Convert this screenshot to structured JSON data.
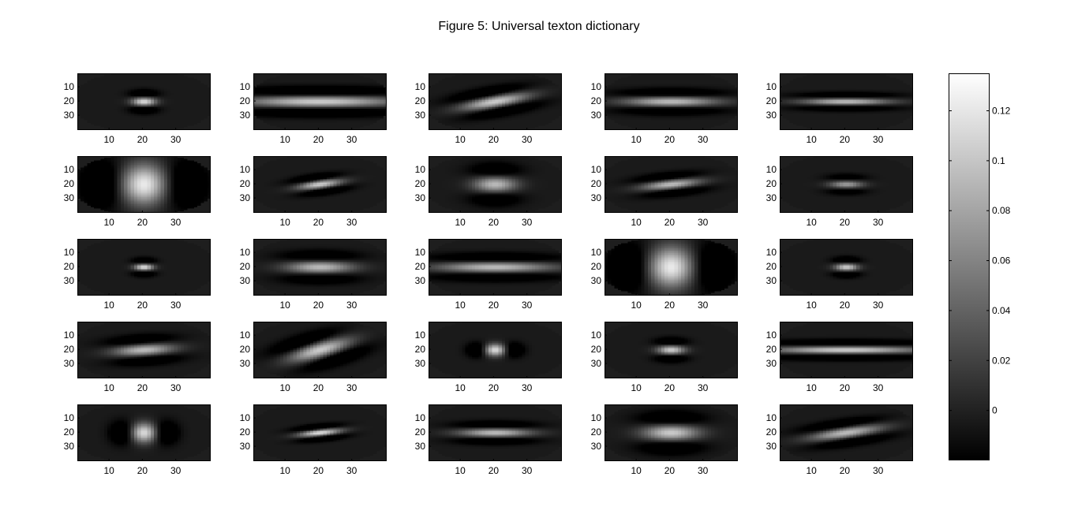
{
  "chart_data": {
    "type": "heatmap",
    "title": "Figure 5: Universal texton dictionary",
    "rows": 5,
    "cols": 5,
    "panel_x_ticks": [
      "10",
      "20",
      "30"
    ],
    "panel_y_ticks": [
      "10",
      "20",
      "30"
    ],
    "panel_xlim": [
      0.5,
      40.5
    ],
    "panel_ylim": [
      0.5,
      40.5
    ],
    "colormap": "gray",
    "colorbar": {
      "range": [
        -0.02,
        0.135
      ],
      "ticks": [
        "0",
        "0.02",
        "0.04",
        "0.06",
        "0.08",
        "0.1",
        "0.12"
      ],
      "tick_values": [
        0,
        0.02,
        0.04,
        0.06,
        0.08,
        0.1,
        0.12
      ]
    },
    "panels": [
      {
        "shape": "spot",
        "orientation_deg": 0,
        "peak": 0.12,
        "width": 2.5,
        "aspect": 1.0
      },
      {
        "shape": "bar",
        "orientation_deg": 0,
        "peak": 0.11,
        "width": 3.2,
        "aspect": 5.0
      },
      {
        "shape": "bar",
        "orientation_deg": -25,
        "peak": 0.11,
        "width": 3.0,
        "aspect": 2.5
      },
      {
        "shape": "bar",
        "orientation_deg": 0,
        "peak": 0.1,
        "width": 2.8,
        "aspect": 3.5
      },
      {
        "shape": "bar",
        "orientation_deg": 0,
        "peak": 0.1,
        "width": 2.0,
        "aspect": 4.5
      },
      {
        "shape": "spot",
        "orientation_deg": 90,
        "peak": 0.13,
        "width": 5.5,
        "aspect": 1.8
      },
      {
        "shape": "bar",
        "orientation_deg": -20,
        "peak": 0.11,
        "width": 2.2,
        "aspect": 2.2
      },
      {
        "shape": "spot",
        "orientation_deg": 0,
        "peak": 0.1,
        "width": 4.5,
        "aspect": 1.0
      },
      {
        "shape": "bar",
        "orientation_deg": -15,
        "peak": 0.1,
        "width": 2.5,
        "aspect": 2.5
      },
      {
        "shape": "spot",
        "orientation_deg": 0,
        "peak": 0.08,
        "width": 2.2,
        "aspect": 1.6
      },
      {
        "shape": "spot",
        "orientation_deg": 0,
        "peak": 0.12,
        "width": 2.0,
        "aspect": 1.0
      },
      {
        "shape": "bar",
        "orientation_deg": 0,
        "peak": 0.1,
        "width": 3.5,
        "aspect": 2.0
      },
      {
        "shape": "bar",
        "orientation_deg": 0,
        "peak": 0.1,
        "width": 3.0,
        "aspect": 4.0
      },
      {
        "shape": "spot",
        "orientation_deg": 90,
        "peak": 0.13,
        "width": 5.5,
        "aspect": 1.8
      },
      {
        "shape": "spot",
        "orientation_deg": 0,
        "peak": 0.11,
        "width": 2.2,
        "aspect": 1.1
      },
      {
        "shape": "bar",
        "orientation_deg": -10,
        "peak": 0.1,
        "width": 3.2,
        "aspect": 2.0
      },
      {
        "shape": "bar",
        "orientation_deg": -40,
        "peak": 0.11,
        "width": 3.5,
        "aspect": 2.2
      },
      {
        "shape": "spot",
        "orientation_deg": 90,
        "peak": 0.12,
        "width": 2.5,
        "aspect": 1.2
      },
      {
        "shape": "spot",
        "orientation_deg": 0,
        "peak": 0.11,
        "width": 2.6,
        "aspect": 1.1
      },
      {
        "shape": "bar",
        "orientation_deg": 0,
        "peak": 0.11,
        "width": 2.2,
        "aspect": 7.0
      },
      {
        "shape": "spot",
        "orientation_deg": 90,
        "peak": 0.12,
        "width": 3.0,
        "aspect": 1.6
      },
      {
        "shape": "bar",
        "orientation_deg": -15,
        "peak": 0.12,
        "width": 1.8,
        "aspect": 2.5
      },
      {
        "shape": "bar",
        "orientation_deg": 0,
        "peak": 0.1,
        "width": 2.5,
        "aspect": 3.0
      },
      {
        "shape": "spot",
        "orientation_deg": 0,
        "peak": 0.11,
        "width": 4.5,
        "aspect": 1.3
      },
      {
        "shape": "bar",
        "orientation_deg": -20,
        "peak": 0.1,
        "width": 2.8,
        "aspect": 2.8
      }
    ]
  }
}
